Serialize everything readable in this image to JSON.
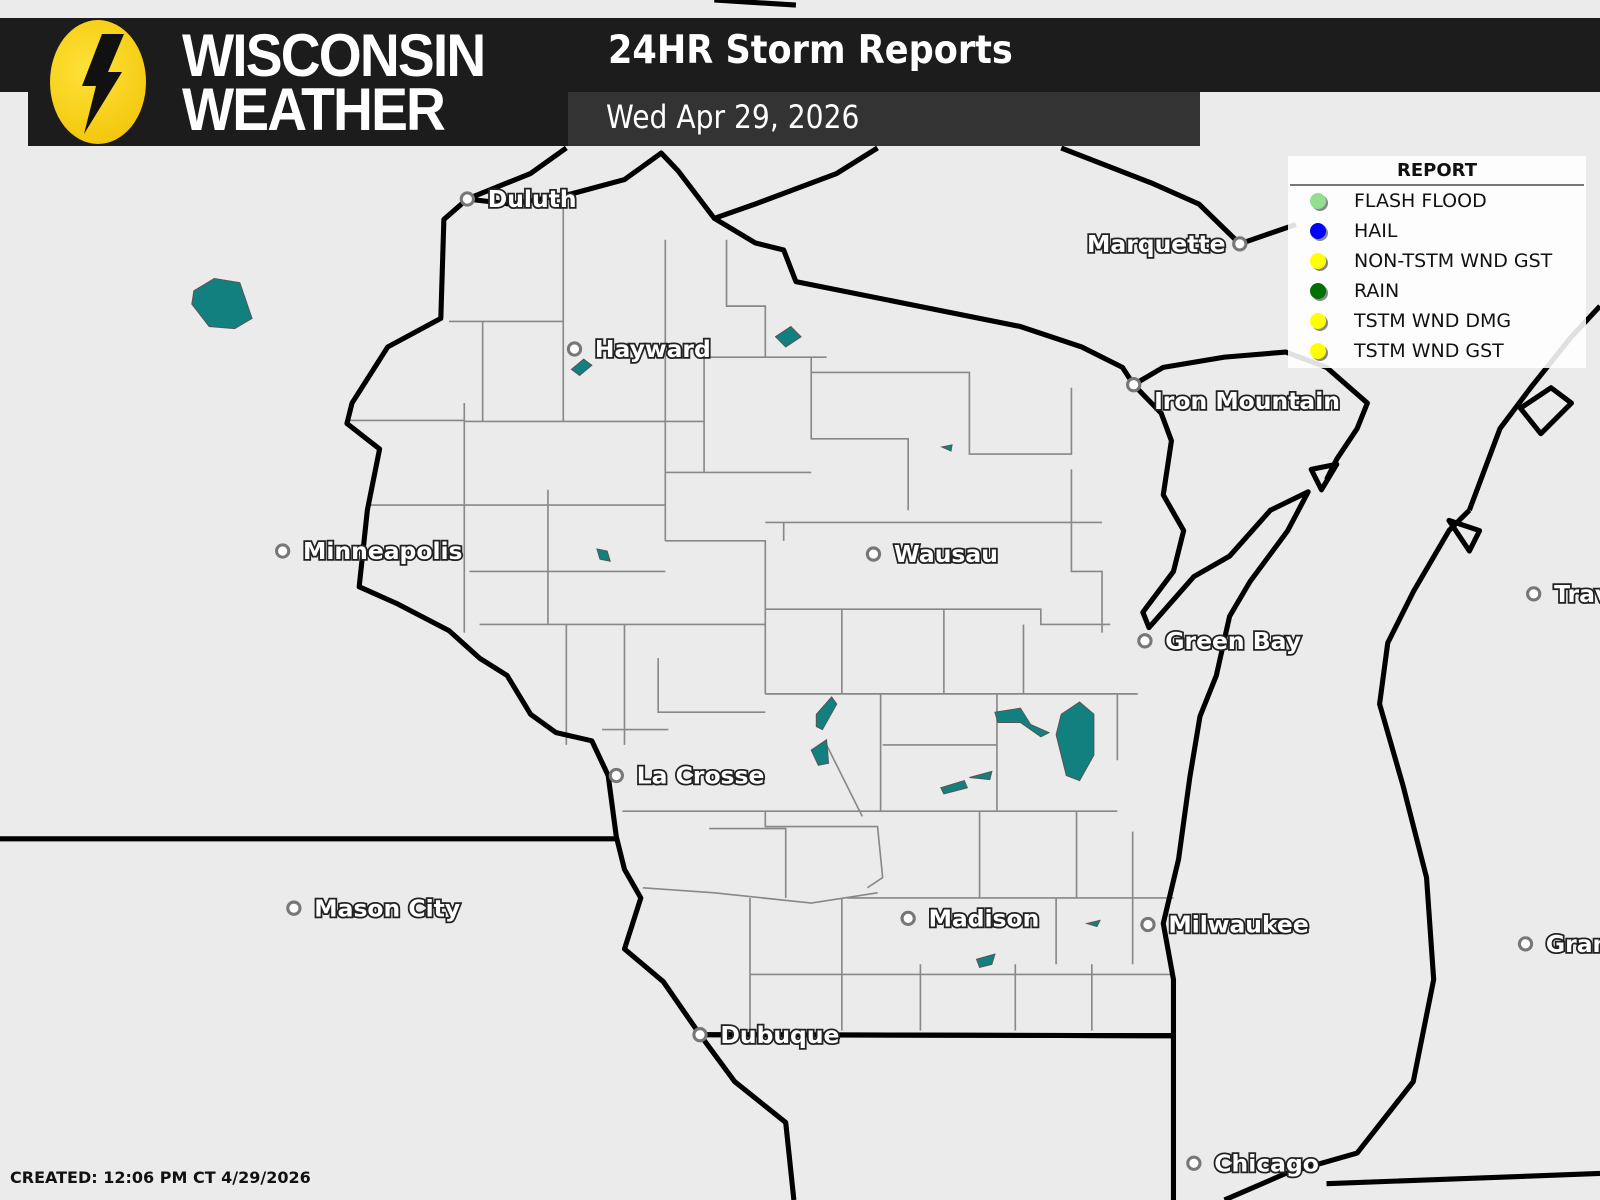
{
  "header": {
    "logo_line1": "WISCONSIN",
    "logo_line2": "WEATHER",
    "title": "24HR Storm Reports",
    "date": "Wed Apr 29, 2026"
  },
  "legend": {
    "title": "REPORT",
    "items": [
      {
        "label": "FLASH FLOOD",
        "color": "#90e090"
      },
      {
        "label": "HAIL",
        "color": "#0000ff"
      },
      {
        "label": "NON-TSTM WND GST",
        "color": "#ffff00"
      },
      {
        "label": "RAIN",
        "color": "#007000"
      },
      {
        "label": "TSTM WND DMG",
        "color": "#ffff00"
      },
      {
        "label": "TSTM WND GST",
        "color": "#ffff00"
      }
    ]
  },
  "cities": [
    {
      "name": "Duluth"
    },
    {
      "name": "Hayward"
    },
    {
      "name": "Minneapolis"
    },
    {
      "name": "Wausau"
    },
    {
      "name": "Iron Mountain"
    },
    {
      "name": "Marquette"
    },
    {
      "name": "Green Bay"
    },
    {
      "name": "La Crosse"
    },
    {
      "name": "Mason City"
    },
    {
      "name": "Madison"
    },
    {
      "name": "Milwaukee"
    },
    {
      "name": "Dubuque"
    },
    {
      "name": "Chicago"
    },
    {
      "name": "Trav"
    },
    {
      "name": "Gran"
    }
  ],
  "colors": {
    "lakes": "#138080",
    "background": "#ebebeb"
  },
  "footer": {
    "created": "CREATED: 12:06 PM CT 4/29/2026"
  }
}
